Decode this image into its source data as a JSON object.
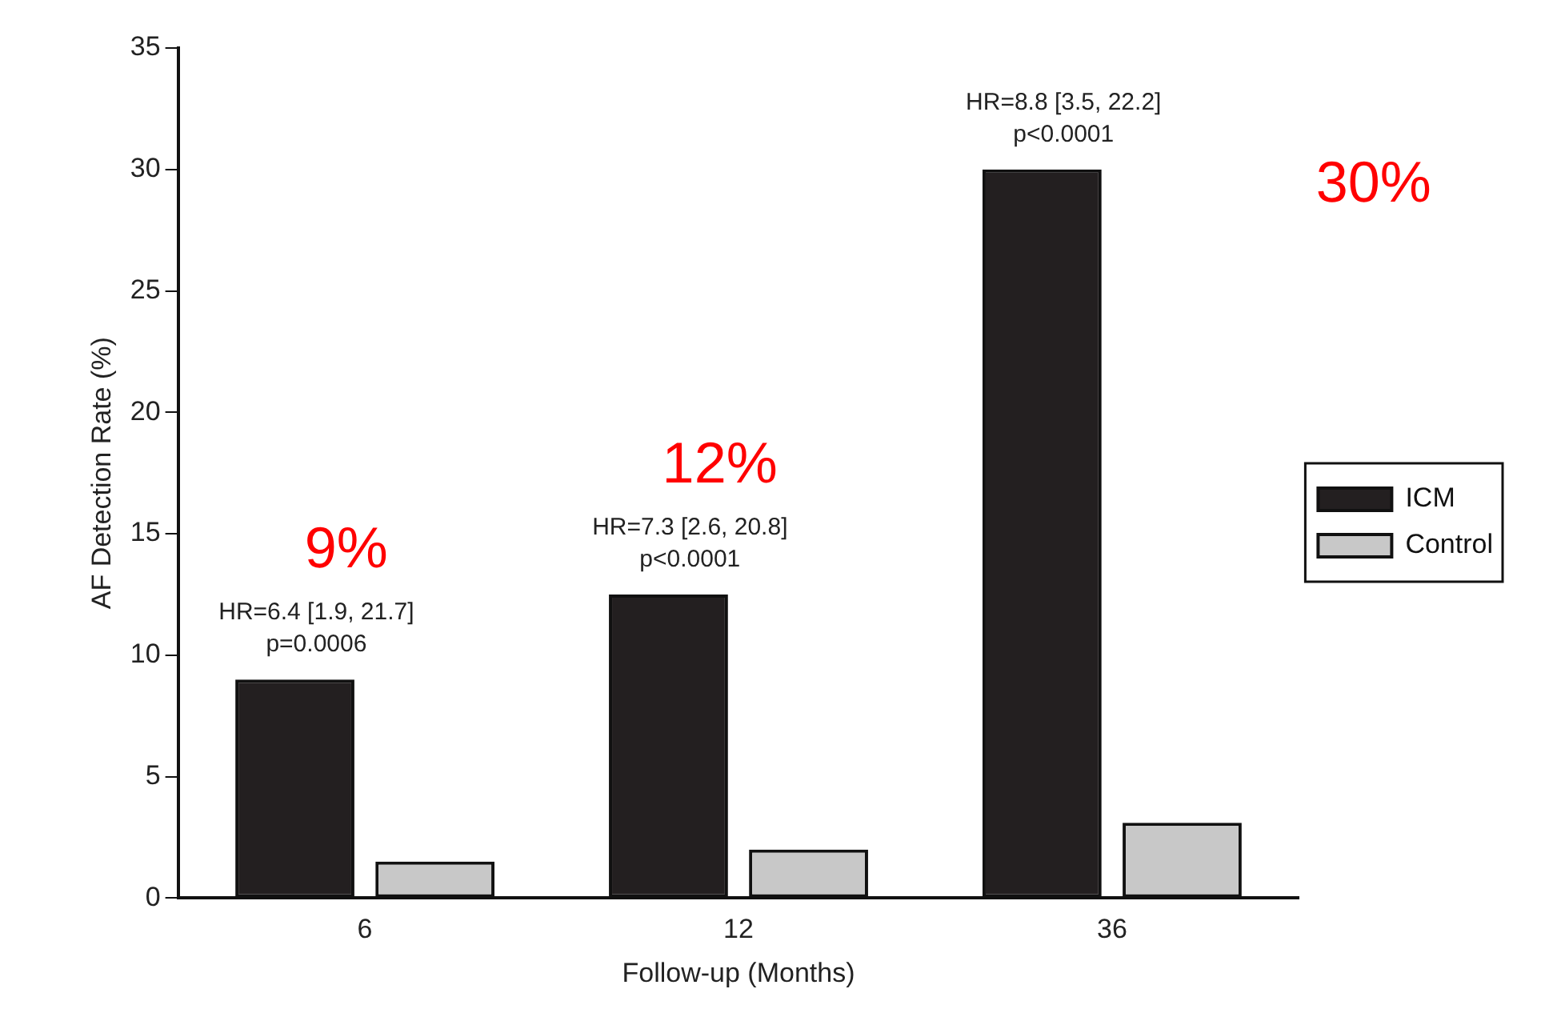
{
  "chart_data": {
    "type": "bar",
    "xlabel": "Follow-up (Months)",
    "ylabel": "AF Detection Rate (%)",
    "categories": [
      "6",
      "12",
      "36"
    ],
    "series": [
      {
        "name": "ICM",
        "color": "#231f20",
        "values": [
          9,
          12.5,
          30
        ]
      },
      {
        "name": "Control",
        "color": "#c8c8c8",
        "values": [
          1.5,
          2,
          3.1
        ]
      }
    ],
    "ylim": [
      0,
      35
    ],
    "yticks": [
      0,
      5,
      10,
      15,
      20,
      25,
      30,
      35
    ],
    "grid": false,
    "legend": "right",
    "annotations": [
      "HR=6.4 [1.9, 21.7]\np=0.0006",
      "HR=7.3 [2.6, 20.8]\np<0.0001",
      "HR=8.8 [3.5, 22.2]\np<0.0001",
      "9%",
      "12%",
      "30%"
    ]
  }
}
